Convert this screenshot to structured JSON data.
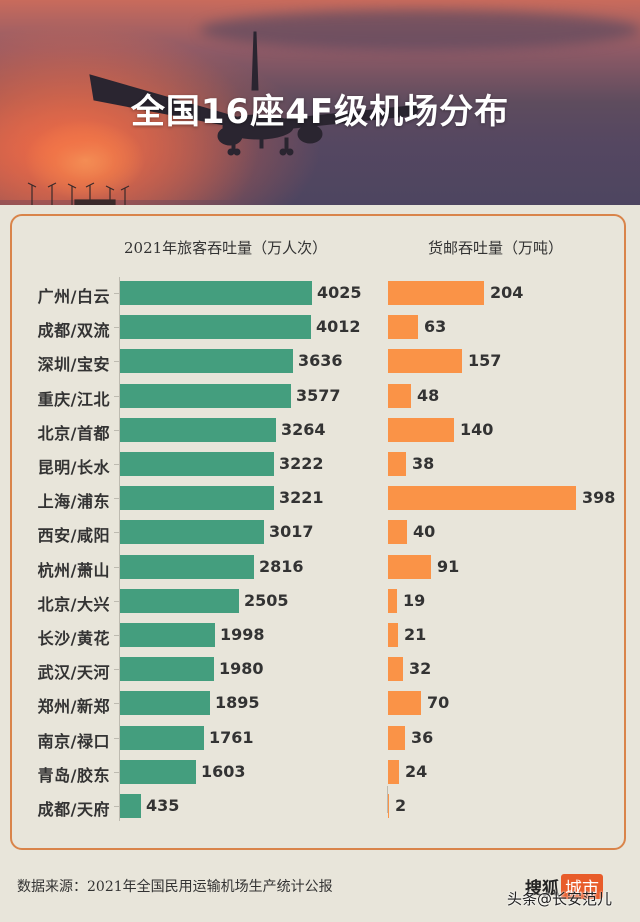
{
  "header": {
    "title": "全国16座4F级机场分布"
  },
  "columns": {
    "passenger_title": "2021年旅客吞吐量（万人次）",
    "cargo_title": "货邮吞吐量（万吨）"
  },
  "colors": {
    "passenger_bar": "#449E7E",
    "cargo_bar": "#FA9347",
    "panel_border": "#D9844A",
    "background": "#E8E5DA",
    "logo_badge": "#E85C2A"
  },
  "chart_data": [
    {
      "type": "bar",
      "orientation": "horizontal",
      "title": "2021年旅客吞吐量（万人次）",
      "xlabel": "",
      "ylabel": "",
      "categories": [
        "广州/白云",
        "成都/双流",
        "深圳/宝安",
        "重庆/江北",
        "北京/首都",
        "昆明/长水",
        "上海/浦东",
        "西安/咸阳",
        "杭州/萧山",
        "北京/大兴",
        "长沙/黄花",
        "武汉/天河",
        "郑州/新郑",
        "南京/禄口",
        "青岛/胶东",
        "成都/天府"
      ],
      "values": [
        4025,
        4012,
        3636,
        3577,
        3264,
        3222,
        3221,
        3017,
        2816,
        2505,
        1998,
        1980,
        1895,
        1761,
        1603,
        435
      ],
      "color": "#449E7E",
      "grid": false,
      "data_labels": true
    },
    {
      "type": "bar",
      "orientation": "horizontal",
      "title": "货邮吞吐量（万吨）",
      "xlabel": "",
      "ylabel": "",
      "categories": [
        "广州/白云",
        "成都/双流",
        "深圳/宝安",
        "重庆/江北",
        "北京/首都",
        "昆明/长水",
        "上海/浦东",
        "西安/咸阳",
        "杭州/萧山",
        "北京/大兴",
        "长沙/黄花",
        "武汉/天河",
        "郑州/新郑",
        "南京/禄口",
        "青岛/胶东",
        "成都/天府"
      ],
      "values": [
        204,
        63,
        157,
        48,
        140,
        38,
        398,
        40,
        91,
        19,
        21,
        32,
        70,
        36,
        24,
        2
      ],
      "color": "#FA9347",
      "grid": false,
      "data_labels": true
    }
  ],
  "rows": [
    {
      "label": "广州/白云",
      "passenger": "4025",
      "cargo": "204"
    },
    {
      "label": "成都/双流",
      "passenger": "4012",
      "cargo": "63"
    },
    {
      "label": "深圳/宝安",
      "passenger": "3636",
      "cargo": "157"
    },
    {
      "label": "重庆/江北",
      "passenger": "3577",
      "cargo": "48"
    },
    {
      "label": "北京/首都",
      "passenger": "3264",
      "cargo": "140"
    },
    {
      "label": "昆明/长水",
      "passenger": "3222",
      "cargo": "38"
    },
    {
      "label": "上海/浦东",
      "passenger": "3221",
      "cargo": "398"
    },
    {
      "label": "西安/咸阳",
      "passenger": "3017",
      "cargo": "40"
    },
    {
      "label": "杭州/萧山",
      "passenger": "2816",
      "cargo": "91"
    },
    {
      "label": "北京/大兴",
      "passenger": "2505",
      "cargo": "19"
    },
    {
      "label": "长沙/黄花",
      "passenger": "1998",
      "cargo": "21"
    },
    {
      "label": "武汉/天河",
      "passenger": "1980",
      "cargo": "32"
    },
    {
      "label": "郑州/新郑",
      "passenger": "1895",
      "cargo": "70"
    },
    {
      "label": "南京/禄口",
      "passenger": "1761",
      "cargo": "36"
    },
    {
      "label": "青岛/胶东",
      "passenger": "1603",
      "cargo": "24"
    },
    {
      "label": "成都/天府",
      "passenger": "435",
      "cargo": "2"
    }
  ],
  "footer": {
    "source": "数据来源：2021年全国民用运输机场生产统计公报",
    "logo_text": "搜狐",
    "logo_badge": "城市",
    "watermark": "头条@长安范儿"
  }
}
